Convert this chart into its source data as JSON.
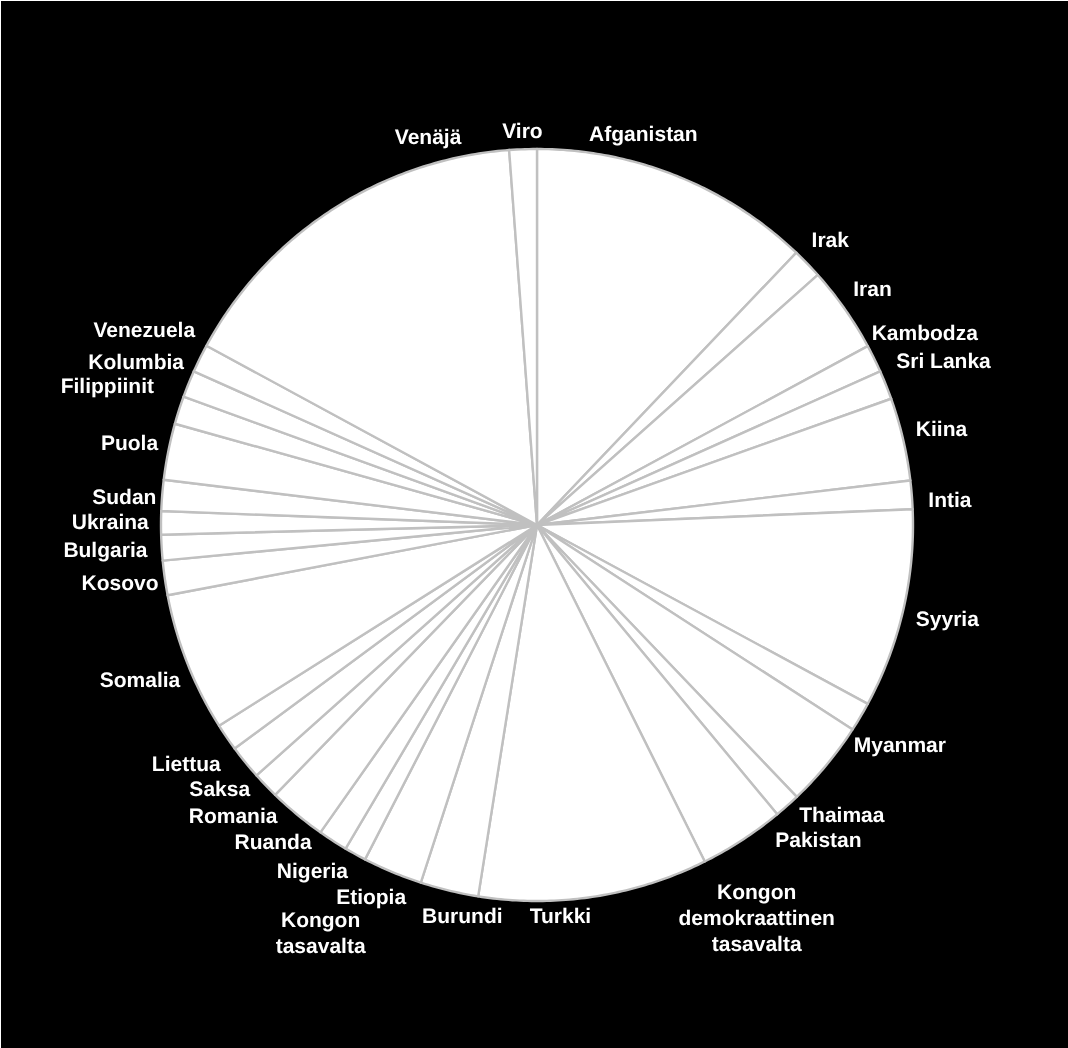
{
  "chart_data": {
    "type": "pie",
    "categories": [
      "Afganistan",
      "Irak",
      "Iran",
      "Kambodza",
      "Sri Lanka",
      "Kiina",
      "Intia",
      "Syyria",
      "Myanmar",
      "Thaimaa",
      "Pakistan",
      "Kongon demokraattinen tasavalta",
      "Turkki",
      "Burundi",
      "Etiopia",
      "Kongon tasavalta",
      "Nigeria",
      "Ruanda",
      "Romania",
      "Saksa",
      "Liettua",
      "Somalia",
      "Kosovo",
      "Bulgaria",
      "Ukraina",
      "Sudan",
      "Puola",
      "Filippiinit",
      "Kolumbia",
      "Venezuela",
      "Venäjä",
      "Viro"
    ],
    "values": [
      12.11,
      1.31,
      3.69,
      1.19,
      1.25,
      3.56,
      1.22,
      8.56,
      1.26,
      3.71,
      1.11,
      3.67,
      9.86,
      2.5,
      2.56,
      0.94,
      1.27,
      2.49,
      1.14,
      1.47,
      1.17,
      5.97,
      1.48,
      1.1,
      1.0,
      1.33,
      2.42,
      1.2,
      1.16,
      1.21,
      15.91,
      1.18
    ],
    "colors": [
      "#ffffff",
      "#ffffff",
      "#ffffff",
      "#ffffff",
      "#ffffff",
      "#ffffff",
      "#ffffff",
      "#ffffff",
      "#ffffff",
      "#ffffff",
      "#ffffff",
      "#ffffff",
      "#ffffff",
      "#ffffff",
      "#ffffff",
      "#ffffff",
      "#ffffff",
      "#ffffff",
      "#ffffff",
      "#ffffff",
      "#ffffff",
      "#ffffff",
      "#ffffff",
      "#ffffff",
      "#ffffff",
      "#ffffff",
      "#ffffff",
      "#ffffff",
      "#ffffff",
      "#ffffff",
      "#ffffff",
      "#ffffff"
    ]
  }
}
